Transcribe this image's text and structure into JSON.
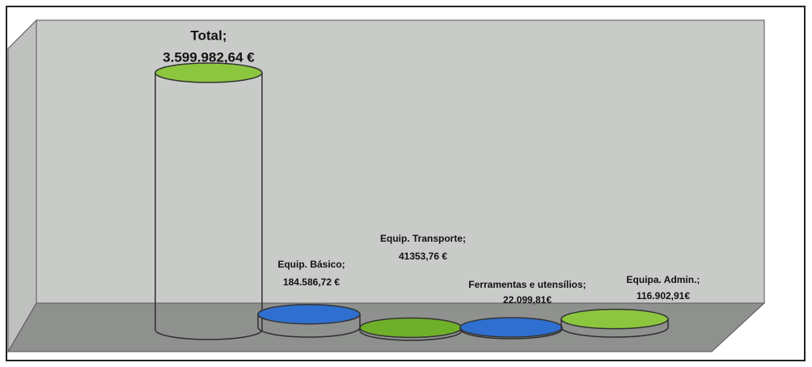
{
  "chart_data": {
    "type": "cylinder-bar",
    "categories": [
      "Total;",
      "Equip. Básico;",
      "Equip. Transporte;",
      "Ferramentas e utensílios;",
      "Equipa. Admin.;"
    ],
    "values": [
      3599982.64,
      184586.72,
      41353.76,
      22099.81,
      116902.91
    ],
    "value_labels": [
      "3.599.982,64 €",
      "184.586,72 €",
      "41353,76 €",
      "22.099,81€",
      "116.902,91€"
    ],
    "colors": [
      "#8cc63f",
      "#2f6fd0",
      "#6fb02a",
      "#2f6fd0",
      "#8cc63f"
    ]
  }
}
